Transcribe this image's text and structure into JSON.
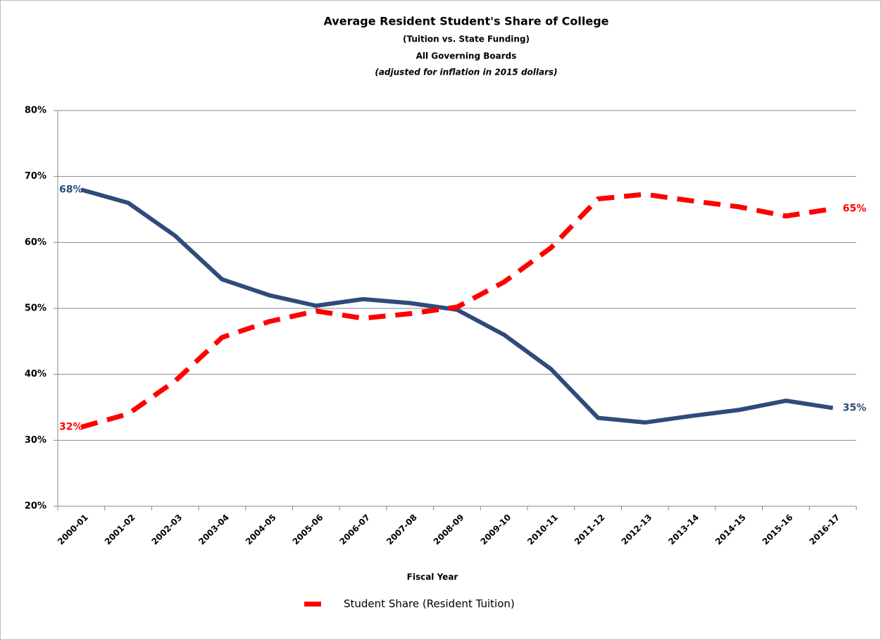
{
  "chart_data": {
    "type": "line",
    "title": "Average Resident Student's Share of College",
    "subtitle": "(Tuition vs. State Funding)",
    "subtitle2": "All Governing Boards",
    "note": "(adjusted for inflation in 2015 dollars)",
    "x_label": "Fiscal Year",
    "categories": [
      "2000-01",
      "2001-02",
      "2002-03",
      "2003-04",
      "2004-05",
      "2005-06",
      "2006-07",
      "2007-08",
      "2008-09",
      "2009-10",
      "2010-11",
      "2011-12",
      "2012-13",
      "2013-14",
      "2014-15",
      "2015-16",
      "2016-17"
    ],
    "series": [
      {
        "color": "#2f4b7c",
        "dash": false,
        "values": [
          68,
          66,
          61,
          54.4,
          52,
          50.4,
          51.4,
          50.8,
          49.8,
          46,
          40.8,
          33.4,
          32.7,
          33.7,
          34.6,
          36,
          34.9
        ],
        "value_labels": [
          "68%",
          null,
          null,
          null,
          null,
          null,
          null,
          null,
          null,
          null,
          null,
          null,
          null,
          null,
          null,
          null,
          "35%"
        ]
      },
      {
        "name": "Student Share (Resident Tuition)",
        "color": "#ff0000",
        "dash": true,
        "values": [
          32,
          34,
          39,
          45.6,
          48,
          49.6,
          48.5,
          49.2,
          50.2,
          54,
          59.2,
          66.6,
          67.3,
          66.3,
          65.4,
          64,
          65.1
        ],
        "value_labels": [
          "32%",
          null,
          null,
          null,
          null,
          null,
          null,
          null,
          null,
          null,
          null,
          null,
          null,
          null,
          null,
          null,
          "65%"
        ]
      }
    ],
    "ylim": [
      20,
      80
    ],
    "yticks": [
      {
        "value": 20,
        "label": "20%"
      },
      {
        "value": 30,
        "label": "30%"
      },
      {
        "value": 40,
        "label": "40%"
      },
      {
        "value": 50,
        "label": "50%"
      },
      {
        "value": 60,
        "label": "60%"
      },
      {
        "value": 70,
        "label": "70%"
      },
      {
        "value": 80,
        "label": "80%"
      }
    ],
    "grid": true
  }
}
